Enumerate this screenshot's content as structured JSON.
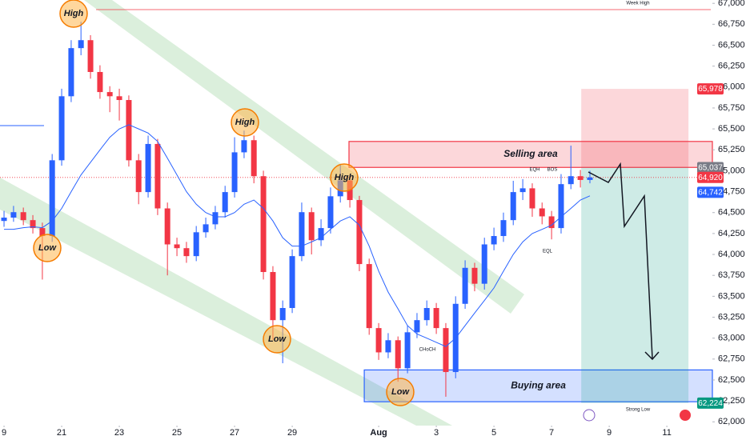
{
  "chart_data": {
    "type": "candlestick",
    "x": [
      0,
      0.33,
      0.67,
      1,
      1.33,
      1.67,
      2,
      2.33,
      2.67,
      3,
      3.33,
      3.67,
      4,
      4.33,
      4.67,
      5,
      5.33,
      5.67,
      6,
      6.33,
      6.67,
      7,
      7.33,
      7.67,
      8,
      8.33,
      8.67,
      9,
      9.33,
      9.67,
      10,
      10.33,
      10.67,
      11,
      11.33,
      11.67,
      12,
      12.33,
      12.67,
      13,
      13.33,
      13.67,
      14,
      14.33,
      14.67,
      15,
      15.33,
      15.67,
      16,
      16.33,
      16.67,
      17,
      17.33,
      17.67,
      18,
      18.33,
      18.67,
      19,
      19.33,
      19.67,
      20,
      20.33
    ],
    "open": [
      64400,
      64440,
      64505,
      64410,
      64315,
      64220,
      65125,
      65890,
      66465,
      66560,
      66180,
      65940,
      65890,
      65845,
      65125,
      64745,
      65320,
      64550,
      64120,
      64075,
      63980,
      64265,
      64360,
      64505,
      64745,
      65220,
      65365,
      64935,
      63790,
      63215,
      63360,
      63980,
      64505,
      64170,
      64315,
      64695,
      64885,
      64650,
      63885,
      63120,
      62830,
      62975,
      62640,
      63070,
      63215,
      63360,
      63120,
      62595,
      63410,
      63840,
      63650,
      64120,
      64220,
      64410,
      64745,
      64790,
      64550,
      64455,
      64315,
      64840,
      64935,
      64890
    ],
    "high": [
      64520,
      64580,
      64560,
      64470,
      64380,
      65200,
      65980,
      66560,
      66780,
      66620,
      66260,
      66010,
      65980,
      65900,
      65200,
      65420,
      65380,
      64620,
      64200,
      64150,
      64340,
      64440,
      64580,
      64820,
      65400,
      65480,
      65420,
      65000,
      63860,
      63450,
      64060,
      64620,
      64560,
      64420,
      64800,
      65070,
      64950,
      64700,
      63950,
      63180,
      63060,
      63020,
      63150,
      63300,
      63450,
      63420,
      63180,
      63500,
      63930,
      63900,
      64200,
      64320,
      64500,
      64880,
      64900,
      64850,
      64620,
      64520,
      64960,
      65300,
      65010,
      65000
    ],
    "low": [
      64330,
      64390,
      64350,
      64250,
      63700,
      64150,
      65060,
      65820,
      66380,
      66100,
      65860,
      65700,
      65600,
      65050,
      64600,
      64680,
      64470,
      63750,
      63980,
      63900,
      63920,
      64200,
      64300,
      64440,
      64680,
      65150,
      64850,
      63700,
      62980,
      62700,
      63300,
      63920,
      64000,
      64100,
      64250,
      64620,
      64560,
      63800,
      63040,
      62740,
      62760,
      62480,
      62580,
      63000,
      63150,
      63050,
      62300,
      62520,
      63350,
      63560,
      63580,
      64050,
      64150,
      64350,
      64650,
      64450,
      64360,
      64180,
      64250,
      64780,
      64800,
      64850
    ],
    "close": [
      64440,
      64505,
      64410,
      64315,
      64220,
      65125,
      65890,
      66465,
      66560,
      66180,
      65940,
      65890,
      65845,
      65125,
      64745,
      65320,
      64550,
      64120,
      64075,
      63980,
      64265,
      64360,
      64505,
      64745,
      65220,
      65365,
      64935,
      63790,
      63215,
      63360,
      63980,
      64505,
      64170,
      64315,
      64695,
      64885,
      64650,
      63885,
      63120,
      62830,
      62975,
      62640,
      63070,
      63215,
      63360,
      63120,
      62595,
      63410,
      63840,
      63650,
      64120,
      64220,
      64410,
      64745,
      64790,
      64550,
      64455,
      64315,
      64840,
      64935,
      64890,
      64920
    ],
    "up_color": "#2962ff",
    "down_color": "#f23645",
    "ma": {
      "color": "#2962ff",
      "values": [
        64300,
        64300,
        64320,
        64330,
        64320,
        64400,
        64550,
        64750,
        64950,
        65100,
        65250,
        65400,
        65500,
        65550,
        65500,
        65450,
        65350,
        65150,
        64950,
        64750,
        64600,
        64500,
        64450,
        64450,
        64500,
        64600,
        64650,
        64550,
        64400,
        64200,
        64100,
        64100,
        64150,
        64200,
        64300,
        64400,
        64450,
        64350,
        64100,
        63800,
        63550,
        63350,
        63150,
        63050,
        63000,
        62950,
        62900,
        63000,
        63150,
        63300,
        63450,
        63600,
        63800,
        64000,
        64150,
        64250,
        64300,
        64350,
        64450,
        64550,
        64650,
        64700
      ]
    },
    "xlim": [
      -0.14,
      24.58
    ],
    "ylim": [
      61955,
      67040
    ],
    "xticks": [
      {
        "value": 0,
        "label": "9"
      },
      {
        "value": 2,
        "label": "21"
      },
      {
        "value": 4,
        "label": "23"
      },
      {
        "value": 6,
        "label": "25"
      },
      {
        "value": 8,
        "label": "27"
      },
      {
        "value": 10,
        "label": "29"
      },
      {
        "value": 13,
        "label": "Aug"
      },
      {
        "value": 15,
        "label": "3"
      },
      {
        "value": 17,
        "label": "5"
      },
      {
        "value": 19,
        "label": "7"
      },
      {
        "value": 21,
        "label": "9"
      },
      {
        "value": 23,
        "label": "11"
      }
    ],
    "yticks": [
      {
        "value": 62000,
        "label": "62,000"
      },
      {
        "value": 62250,
        "label": "62,250"
      },
      {
        "value": 62500,
        "label": "62,500"
      },
      {
        "value": 62750,
        "label": "62,750"
      },
      {
        "value": 63000,
        "label": "63,000"
      },
      {
        "value": 63250,
        "label": "63,250"
      },
      {
        "value": 63500,
        "label": "63,500"
      },
      {
        "value": 63750,
        "label": "63,750"
      },
      {
        "value": 64000,
        "label": "64,000"
      },
      {
        "value": 64250,
        "label": "64,250"
      },
      {
        "value": 64500,
        "label": "64,500"
      },
      {
        "value": 64750,
        "label": "64,750"
      },
      {
        "value": 65000,
        "label": "65,000"
      },
      {
        "value": 65250,
        "label": "65,250"
      },
      {
        "value": 65500,
        "label": "65,500"
      },
      {
        "value": 65750,
        "label": "65,750"
      },
      {
        "value": 66000,
        "label": "66,000"
      },
      {
        "value": 66250,
        "label": "66,250"
      },
      {
        "value": 66500,
        "label": "66,500"
      },
      {
        "value": 66750,
        "label": "66,750"
      },
      {
        "value": 67000,
        "label": "67,000"
      }
    ],
    "price_tags": [
      {
        "value": 65978,
        "label": "65,978",
        "color": "#f23645"
      },
      {
        "value": 65037,
        "label": "65,037",
        "color": "#787b86"
      },
      {
        "value": 64920,
        "label": "64,920",
        "color": "#f23645"
      },
      {
        "value": 64742,
        "label": "64,742",
        "color": "#2962ff"
      },
      {
        "value": 62224,
        "label": "62,224",
        "color": "#089981"
      }
    ],
    "zones": [
      {
        "label": "Selling area",
        "low": 65040,
        "high": 65350,
        "x_start": 11.97,
        "color": "#f23645"
      },
      {
        "label": "Buying area",
        "low": 62240,
        "high": 62620,
        "x_start": 12.5,
        "color": "#2962ff"
      }
    ],
    "trade": {
      "stop": 65978,
      "entry": 65037,
      "target": 62224,
      "x_start": 20.03,
      "x_end": 23.75
    },
    "annotations": [
      "High",
      "Low",
      "High",
      "Low",
      "High",
      "Low",
      "Week High",
      "Strong Low",
      "EQH",
      "BOS",
      "EQL",
      "CHoCH"
    ]
  }
}
